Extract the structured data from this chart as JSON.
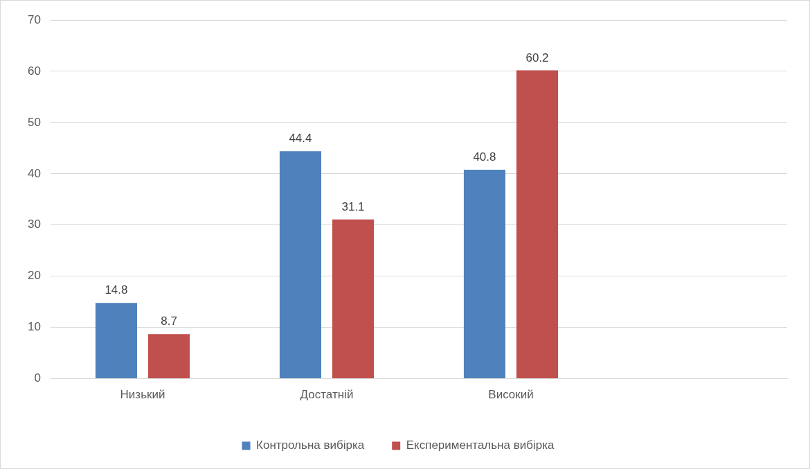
{
  "chart_data": {
    "type": "bar",
    "categories": [
      "Низький",
      "Достатній",
      "Високий",
      null
    ],
    "series": [
      {
        "name": "Контрольна вибірка",
        "color": "#4f81bd",
        "values": [
          14.8,
          44.4,
          40.8,
          null
        ]
      },
      {
        "name": "Експериментальна вибірка",
        "color": "#c0504d",
        "values": [
          8.7,
          31.1,
          60.2,
          null
        ]
      }
    ],
    "ylim": [
      0,
      70
    ],
    "yticks": [
      0,
      10,
      20,
      30,
      40,
      50,
      60,
      70
    ],
    "grid": "y",
    "legend": "bottom",
    "data_labels": true
  }
}
